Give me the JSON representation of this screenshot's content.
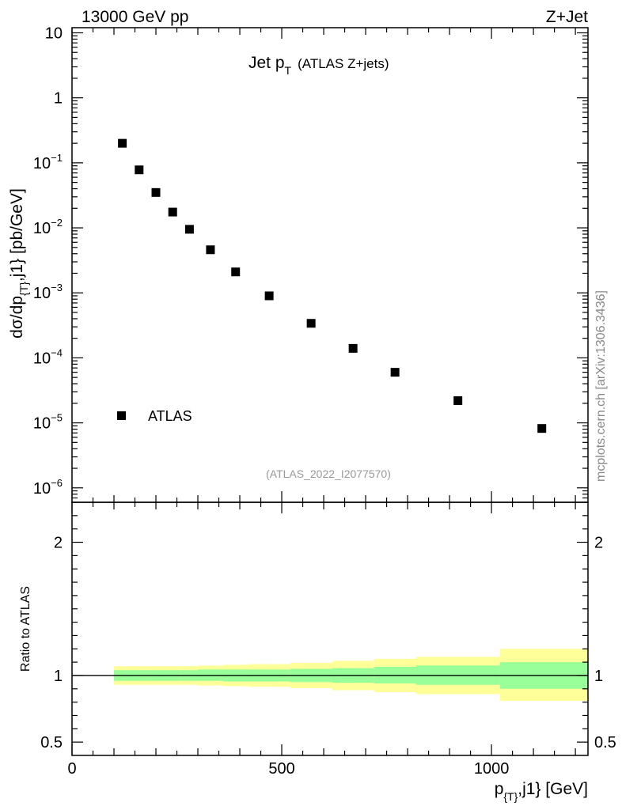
{
  "header": {
    "left": "13000 GeV pp",
    "right": "Z+Jet"
  },
  "main_title": {
    "text": "Jet p",
    "sub": "T",
    "suffix": "(ATLAS Z+jets)"
  },
  "side_label": "mcplots.cern.ch [arXiv:1306.3436]",
  "analysis_tag": "(ATLAS_2022_I2077570)",
  "legend": {
    "label": "ATLAS",
    "placement": "bottom-left"
  },
  "y_axis_label": {
    "part1": "dσ/dp",
    "sub": "{T}",
    "part2": ",j1} [pb/GeV]"
  },
  "ratio_axis_label": "Ratio to ATLAS",
  "x_axis_label": {
    "part1": "p",
    "sub": "{T}",
    "part2": ",j1} [GeV]"
  },
  "colors": {
    "marker": "#000000",
    "band_inner": "#99ff99",
    "band_outer": "#ffff99",
    "ratio_line": "#000000"
  },
  "chart_data": {
    "type": "scatter",
    "x": [
      120,
      160,
      200,
      240,
      280,
      330,
      390,
      470,
      570,
      670,
      770,
      920,
      1120
    ],
    "series": [
      {
        "name": "ATLAS",
        "values": [
          0.2,
          0.078,
          0.035,
          0.0175,
          0.0095,
          0.0046,
          0.0021,
          0.0009,
          0.00034,
          0.00014,
          6e-05,
          2.2e-05,
          8.2e-06
        ]
      }
    ],
    "xlim": [
      0,
      1230
    ],
    "ylim": [
      6e-07,
      12
    ],
    "y_scale": "log",
    "x_ticks": [
      {
        "value": 0,
        "label": "0"
      },
      {
        "value": 500,
        "label": "500"
      },
      {
        "value": 1000,
        "label": "1000"
      }
    ],
    "y_ticks": [
      {
        "exp": 1,
        "base": "10",
        "sup": ""
      },
      {
        "exp": 0,
        "base": "1",
        "sup": ""
      },
      {
        "exp": -1,
        "base": "10",
        "sup": "−1"
      },
      {
        "exp": -2,
        "base": "10",
        "sup": "−2"
      },
      {
        "exp": -3,
        "base": "10",
        "sup": "−3"
      },
      {
        "exp": -4,
        "base": "10",
        "sup": "−4"
      },
      {
        "exp": -5,
        "base": "10",
        "sup": "−5"
      },
      {
        "exp": -6,
        "base": "10",
        "sup": "−6"
      }
    ],
    "ratio": {
      "ylim": [
        0.4,
        2.3
      ],
      "y_ticks": [
        {
          "value": 2,
          "label": "2"
        },
        {
          "value": 1,
          "label": "1"
        },
        {
          "value": 0.5,
          "label": "0.5"
        }
      ],
      "bins": [
        {
          "x0": 100,
          "x1": 140,
          "inner": [
            0.96,
            1.04
          ],
          "outer": [
            0.93,
            1.07
          ]
        },
        {
          "x0": 140,
          "x1": 180,
          "inner": [
            0.96,
            1.04
          ],
          "outer": [
            0.93,
            1.07
          ]
        },
        {
          "x0": 180,
          "x1": 220,
          "inner": [
            0.96,
            1.04
          ],
          "outer": [
            0.93,
            1.07
          ]
        },
        {
          "x0": 220,
          "x1": 260,
          "inner": [
            0.96,
            1.04
          ],
          "outer": [
            0.93,
            1.07
          ]
        },
        {
          "x0": 260,
          "x1": 300,
          "inner": [
            0.96,
            1.04
          ],
          "outer": [
            0.93,
            1.07
          ]
        },
        {
          "x0": 300,
          "x1": 360,
          "inner": [
            0.96,
            1.045
          ],
          "outer": [
            0.925,
            1.075
          ]
        },
        {
          "x0": 360,
          "x1": 420,
          "inner": [
            0.955,
            1.045
          ],
          "outer": [
            0.92,
            1.08
          ]
        },
        {
          "x0": 420,
          "x1": 520,
          "inner": [
            0.955,
            1.045
          ],
          "outer": [
            0.915,
            1.085
          ]
        },
        {
          "x0": 520,
          "x1": 620,
          "inner": [
            0.95,
            1.05
          ],
          "outer": [
            0.905,
            1.095
          ]
        },
        {
          "x0": 620,
          "x1": 720,
          "inner": [
            0.945,
            1.055
          ],
          "outer": [
            0.89,
            1.11
          ]
        },
        {
          "x0": 720,
          "x1": 820,
          "inner": [
            0.94,
            1.065
          ],
          "outer": [
            0.875,
            1.125
          ]
        },
        {
          "x0": 820,
          "x1": 1020,
          "inner": [
            0.93,
            1.075
          ],
          "outer": [
            0.86,
            1.14
          ]
        },
        {
          "x0": 1020,
          "x1": 1230,
          "inner": [
            0.9,
            1.1
          ],
          "outer": [
            0.81,
            1.2
          ]
        }
      ],
      "reference": 1
    }
  }
}
